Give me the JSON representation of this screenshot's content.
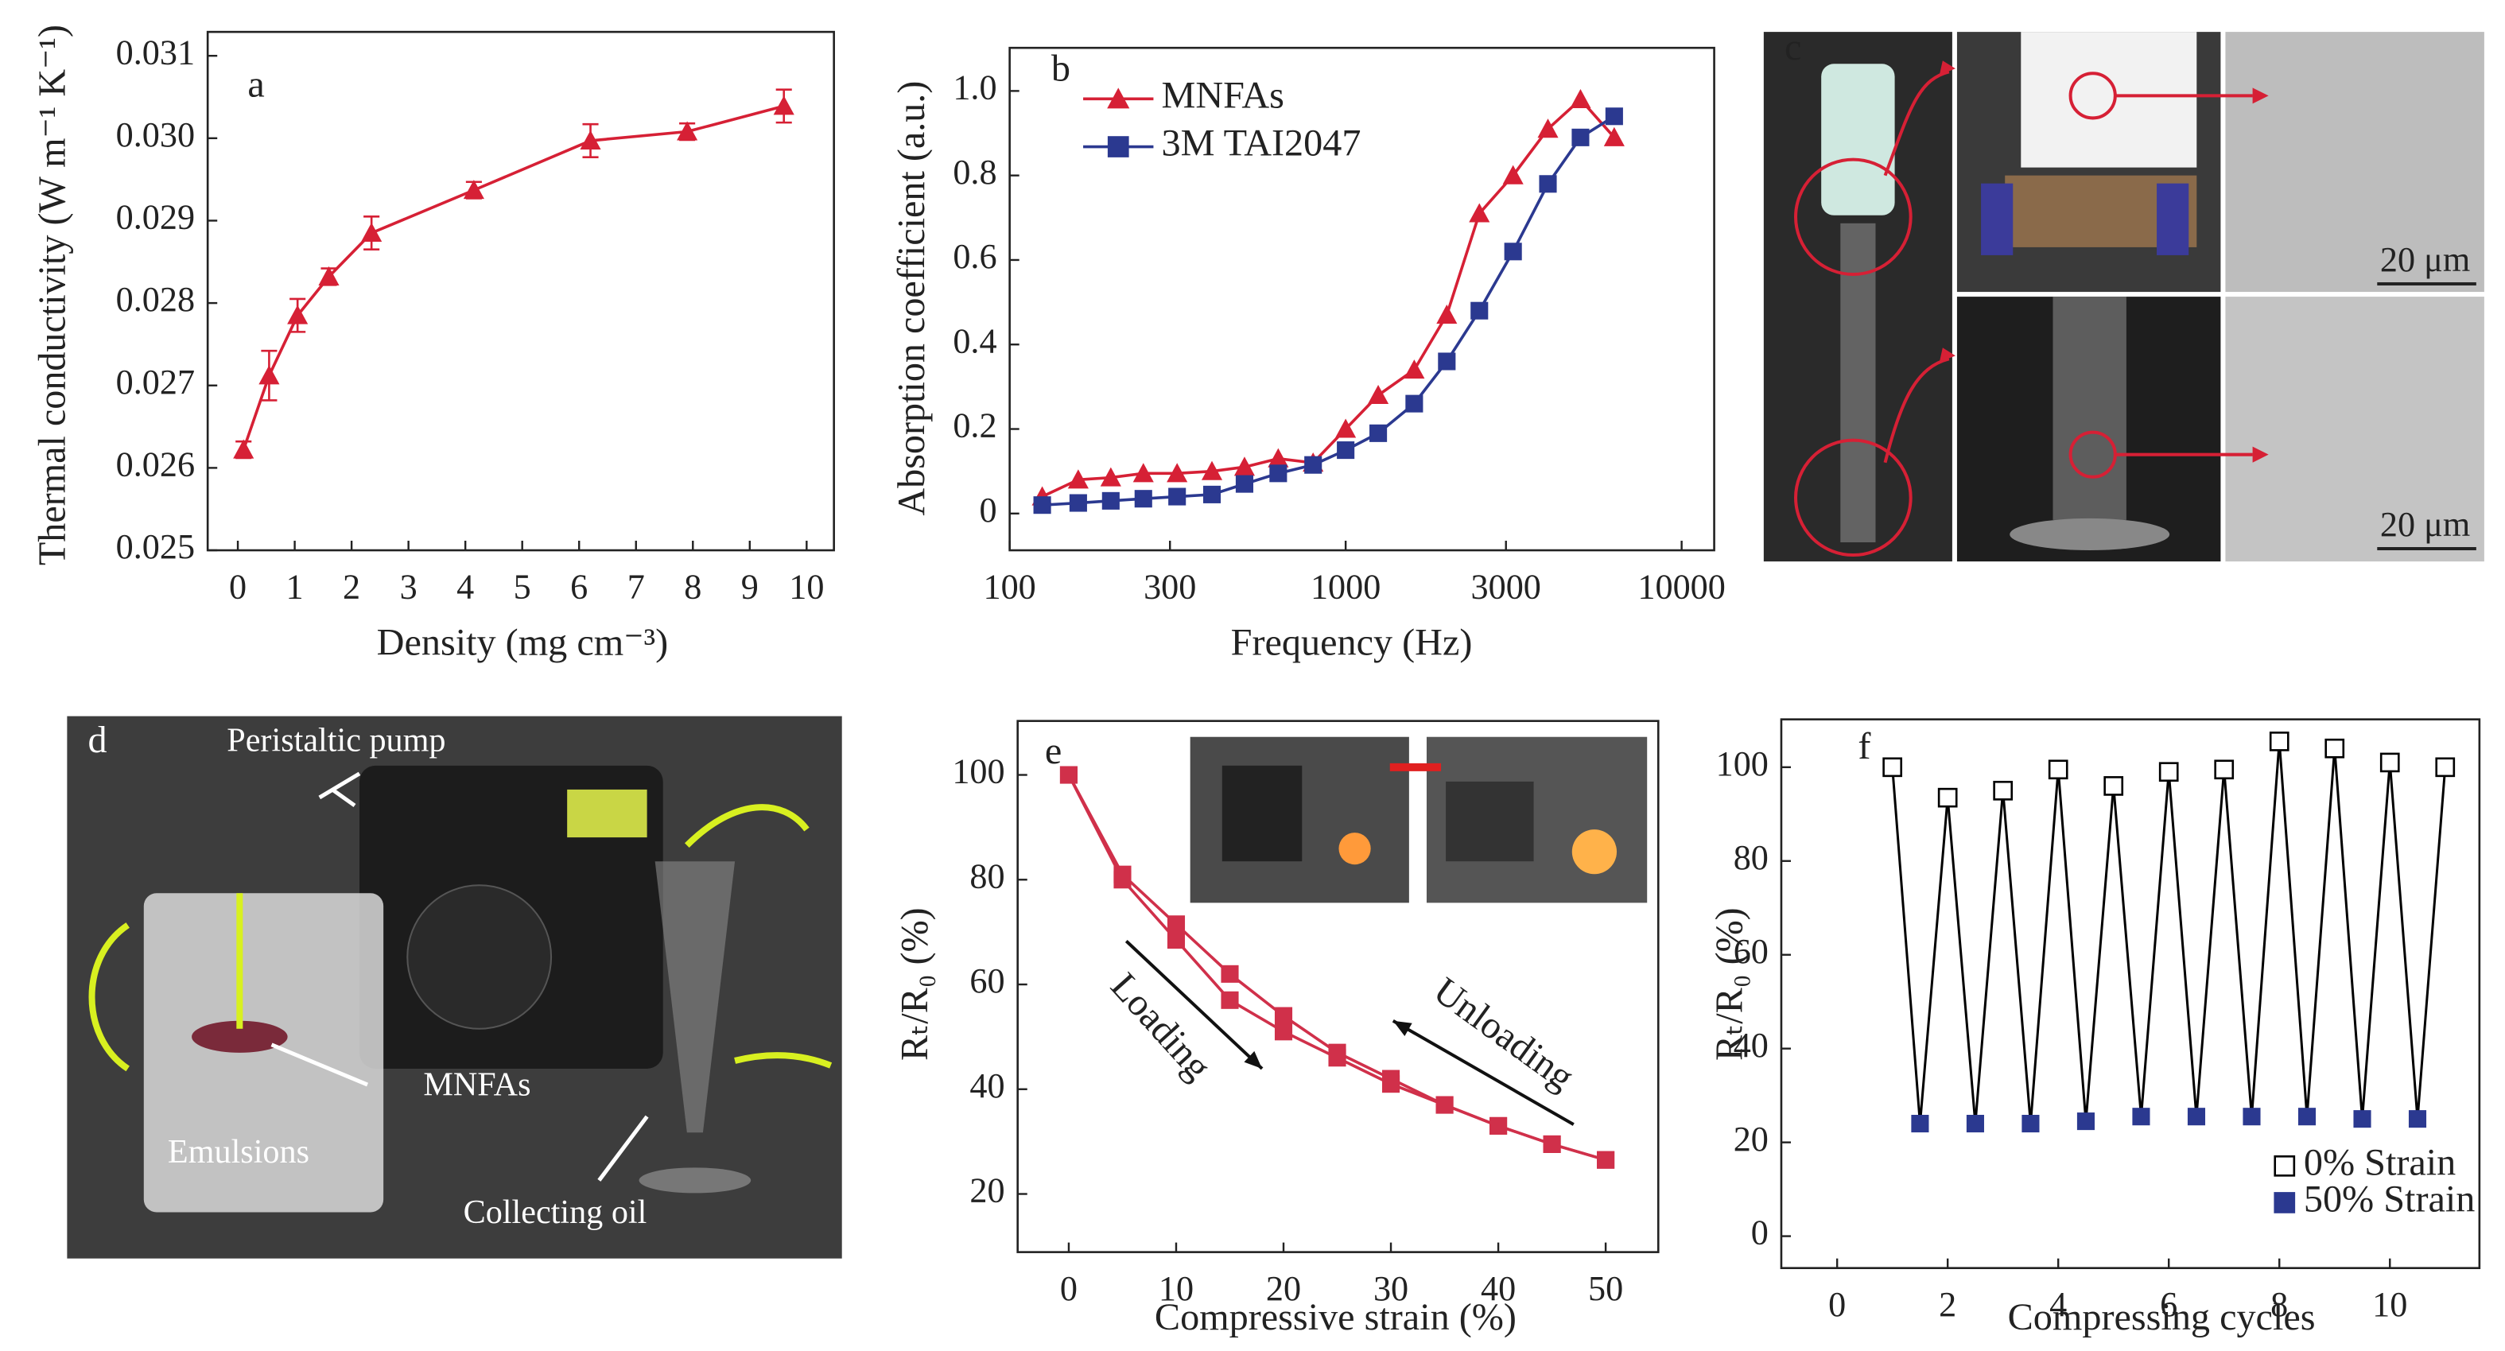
{
  "chart_data": [
    {
      "type": "line",
      "panel": "a",
      "xlabel": "Density (mg cm⁻³)",
      "ylabel": "Thermal conductivity (W m⁻¹ K⁻¹)",
      "x": [
        0.1,
        0.55,
        1.05,
        1.6,
        2.35,
        4.15,
        6.2,
        7.9,
        9.6
      ],
      "series": [
        {
          "color": "#d62035",
          "marker": "triangle",
          "values": [
            0.02622,
            0.02712,
            0.02785,
            0.02832,
            0.02885,
            0.02937,
            0.02997,
            0.03008,
            0.03039
          ],
          "errors": [
            0.0001,
            0.0003,
            0.0002,
            0.0001,
            0.0002,
            0.0001,
            0.0002,
            0.0001,
            0.0002
          ]
        }
      ],
      "xlim": [
        -0.53,
        10.48
      ],
      "xticks": [
        0,
        1,
        2,
        3,
        4,
        5,
        6,
        7,
        8,
        9,
        10
      ],
      "ylim": [
        0.025,
        0.03129
      ],
      "yticks": [
        0.025,
        0.026,
        0.027,
        0.028,
        0.029,
        {
          "value": 0.03,
          "label": "0.030"
        },
        0.031
      ]
    },
    {
      "type": "line",
      "panel": "b",
      "xlabel": "Frequency (Hz)",
      "ylabel": "Absorption coefficient (a.u.)",
      "xscale": "log",
      "legend": "upper left",
      "x": [
        125,
        160,
        200,
        250,
        315,
        400,
        500,
        630,
        800,
        1000,
        1250,
        1600,
        2000,
        2500,
        3150,
        4000,
        5000,
        6300
      ],
      "series": [
        {
          "name": "MNFAs",
          "color": "#d62035",
          "marker": "triangle",
          "values": [
            0.04,
            0.08,
            0.085,
            0.095,
            0.095,
            0.1,
            0.11,
            0.13,
            0.12,
            0.2,
            0.28,
            0.34,
            0.47,
            0.71,
            0.8,
            0.91,
            0.98,
            0.89
          ]
        },
        {
          "name": "3M TAI2047",
          "color": "#2b3990",
          "marker": "square",
          "values": [
            0.02,
            0.025,
            0.03,
            0.035,
            0.04,
            0.045,
            0.07,
            0.095,
            0.115,
            0.15,
            0.19,
            0.26,
            0.36,
            0.48,
            0.62,
            0.78,
            0.89,
            0.94
          ]
        }
      ],
      "xlim": [
        100,
        12500
      ],
      "xticks": [
        100,
        300,
        1000,
        3000,
        10000
      ],
      "ylim": [
        -0.087,
        1.102
      ],
      "yticks": [
        0,
        0.2,
        0.4,
        0.6,
        0.8,
        {
          "value": 1,
          "label": "1.0"
        }
      ]
    },
    {
      "type": "line",
      "panel": "e",
      "xlabel": "Compressive strain (%)",
      "ylabel": "Rₜ/R₀ (%)",
      "x": [
        0,
        5,
        10,
        15,
        20,
        25,
        30,
        35,
        40,
        45,
        50
      ],
      "series": [
        {
          "name": "Loading",
          "color": "#d0304a",
          "marker": "square",
          "values": [
            100,
            80,
            68.5,
            57,
            51,
            46,
            41,
            37,
            33,
            29.5,
            26.5
          ]
        },
        {
          "name": "Unloading",
          "color": "#d0304a",
          "marker": "square",
          "values": [
            100,
            81,
            71.5,
            62,
            54,
            47,
            42,
            37,
            33,
            29.5,
            26.5
          ]
        }
      ],
      "xlim": [
        -4.76,
        54.9
      ],
      "xticks": [
        0,
        10,
        20,
        30,
        40,
        50
      ],
      "ylim": [
        8.9,
        110.3
      ],
      "yticks": [
        20,
        40,
        60,
        80,
        100
      ]
    },
    {
      "type": "scatter",
      "panel": "f",
      "xlabel": "Compressing cycles",
      "ylabel": "Rₜ/R₀ (%)",
      "legend": "lower right",
      "line_color": "#000000",
      "series": [
        {
          "name": "0% Strain",
          "color": "#000000",
          "marker": "open-square",
          "x": [
            1,
            2,
            3,
            4,
            5,
            6,
            7,
            8,
            9,
            10,
            11
          ],
          "values": [
            100,
            93.5,
            95,
            99.5,
            96,
            99,
            99.5,
            105.5,
            104,
            101,
            100
          ]
        },
        {
          "name": "50% Strain",
          "color": "#2b3990",
          "marker": "square",
          "x": [
            1.5,
            2.5,
            3.5,
            4.5,
            5.5,
            6.5,
            7.5,
            8.5,
            9.5,
            10.5
          ],
          "values": [
            24,
            24,
            24,
            24.5,
            25.5,
            25.5,
            25.5,
            25.5,
            25,
            25
          ]
        }
      ],
      "xlim": [
        -1.01,
        11.62
      ],
      "xticks": [
        0,
        2,
        4,
        6,
        8,
        10
      ],
      "ylim": [
        -6.8,
        110.2
      ],
      "yticks": [
        0,
        20,
        40,
        60,
        80,
        100
      ]
    }
  ],
  "photo_c": {
    "panel": "c",
    "scale_bars": [
      "20 μm",
      "20 μm"
    ]
  },
  "photo_d": {
    "panel": "d",
    "labels": [
      "Peristaltic pump",
      "MNFAs",
      "Emulsions",
      "Collecting oil"
    ]
  }
}
